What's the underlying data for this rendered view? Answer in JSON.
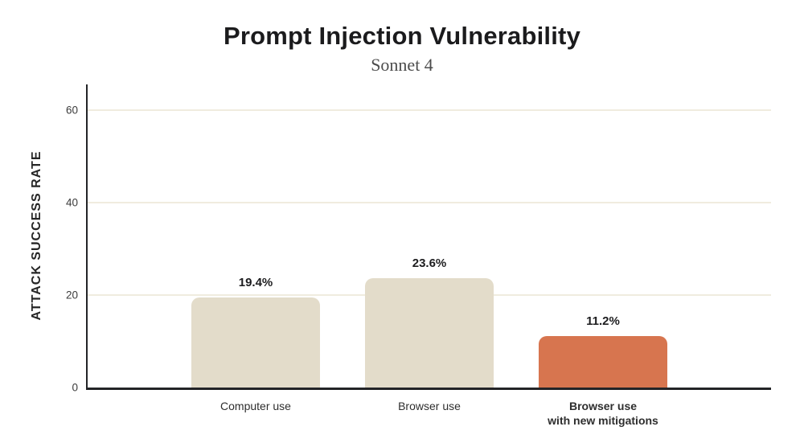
{
  "chart_data": {
    "type": "bar",
    "title": "Prompt Injection Vulnerability",
    "subtitle": "Sonnet 4",
    "ylabel": "ATTACK SUCCESS RATE",
    "xlabel": "",
    "ylim": [
      0,
      65.5
    ],
    "yticks": [
      0,
      20,
      40,
      60
    ],
    "grid": true,
    "legend": false,
    "categories": [
      "Computer use",
      "Browser use",
      "Browser use\nwith new mitigations"
    ],
    "values": [
      19.4,
      23.6,
      11.2
    ],
    "value_labels": [
      "19.4%",
      "23.6%",
      "11.2%"
    ],
    "category_bold": [
      false,
      false,
      true
    ],
    "bar_colors": [
      "#e3dcca",
      "#e3dcca",
      "#d7754f"
    ],
    "colors": {
      "bar_default": "#e3dcca",
      "bar_highlight": "#d7754f",
      "axis": "#232427",
      "gridline": "#f0ecdf",
      "title_text": "#1b1b1d",
      "subtitle_text": "#4c4c4c"
    }
  }
}
